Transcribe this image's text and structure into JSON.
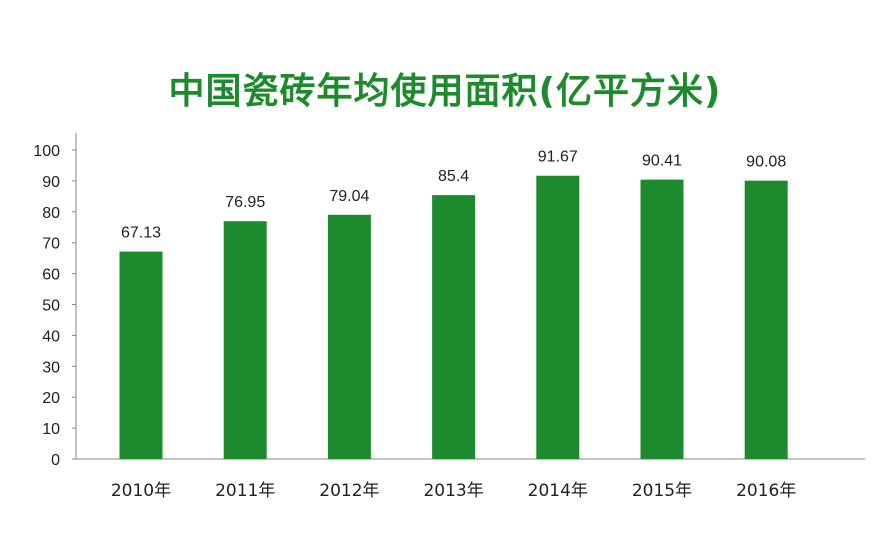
{
  "colors": {
    "accent": "#1e8a2e",
    "axis": "#888888",
    "text": "#222222"
  },
  "chart_data": {
    "type": "bar",
    "title": "中国瓷砖年均使用面积(亿平方米)",
    "xlabel": "",
    "ylabel": "",
    "categories": [
      "2010年",
      "2011年",
      "2012年",
      "2013年",
      "2014年",
      "2015年",
      "2016年"
    ],
    "values": [
      67.13,
      76.95,
      79.04,
      85.4,
      91.67,
      90.41,
      90.08
    ],
    "data_labels": [
      "67.13",
      "76.95",
      "79.04",
      "85.4",
      "91.67",
      "90.41",
      "90.08"
    ],
    "ylim": [
      0,
      100
    ],
    "yticks": [
      0,
      10,
      20,
      30,
      40,
      50,
      60,
      70,
      80,
      90,
      100
    ],
    "grid": false,
    "legend": "none"
  }
}
